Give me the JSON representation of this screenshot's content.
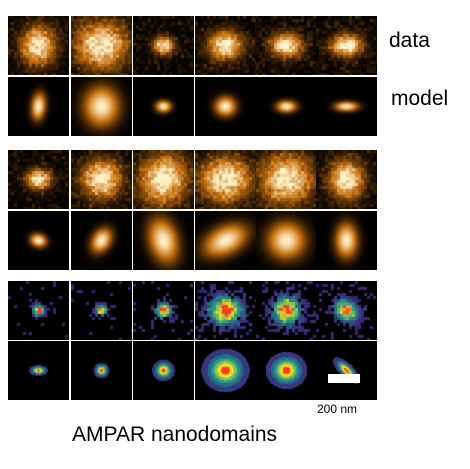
{
  "labels": {
    "data": "data",
    "model": "model",
    "scale": "200 nm",
    "title": "AMPAR nanodomains"
  },
  "panels": {
    "top_group": {
      "data_row": [
        {
          "sx": 0.3,
          "sy": 0.35,
          "rot": 0,
          "noise": 0.55
        },
        {
          "sx": 0.45,
          "sy": 0.42,
          "rot": 0,
          "noise": 0.7
        },
        {
          "sx": 0.18,
          "sy": 0.16,
          "rot": 0,
          "noise": 0.55
        },
        {
          "sx": 0.3,
          "sy": 0.26,
          "rot": 0,
          "noise": 0.6
        },
        {
          "sx": 0.28,
          "sy": 0.22,
          "rot": 0,
          "noise": 0.6
        },
        {
          "sx": 0.28,
          "sy": 0.2,
          "rot": 0,
          "noise": 0.6
        }
      ],
      "model_row": [
        {
          "sx": 0.13,
          "sy": 0.25,
          "rot": 0.1
        },
        {
          "sx": 0.32,
          "sy": 0.37,
          "rot": 0
        },
        {
          "sx": 0.14,
          "sy": 0.11,
          "rot": 0
        },
        {
          "sx": 0.19,
          "sy": 0.18,
          "rot": 0
        },
        {
          "sx": 0.18,
          "sy": 0.11,
          "rot": 0
        },
        {
          "sx": 0.21,
          "sy": 0.09,
          "rot": 0
        }
      ]
    },
    "middle_group": {
      "data_row": [
        {
          "sx": 0.22,
          "sy": 0.18,
          "rot": 0,
          "noise": 0.55
        },
        {
          "sx": 0.35,
          "sy": 0.35,
          "rot": 0,
          "noise": 0.65
        },
        {
          "sx": 0.4,
          "sy": 0.45,
          "rot": 0.3,
          "noise": 0.7
        },
        {
          "sx": 0.45,
          "sy": 0.4,
          "rot": 0,
          "noise": 0.7
        },
        {
          "sx": 0.45,
          "sy": 0.45,
          "rot": 0,
          "noise": 0.7
        },
        {
          "sx": 0.3,
          "sy": 0.35,
          "rot": 0,
          "noise": 0.65
        }
      ],
      "model_row": [
        {
          "sx": 0.15,
          "sy": 0.12,
          "rot": 0.3
        },
        {
          "sx": 0.17,
          "sy": 0.24,
          "rot": 0.5
        },
        {
          "sx": 0.26,
          "sy": 0.42,
          "rot": -0.25
        },
        {
          "sx": 0.42,
          "sy": 0.26,
          "rot": -0.5
        },
        {
          "sx": 0.34,
          "sy": 0.34,
          "rot": 0
        },
        {
          "sx": 0.2,
          "sy": 0.32,
          "rot": 0
        }
      ]
    },
    "bottom_group": {
      "data_row": [
        {
          "sx": 0.1,
          "sy": 0.1,
          "rot": 0,
          "noise": 0.35
        },
        {
          "sx": 0.1,
          "sy": 0.1,
          "rot": 0,
          "noise": 0.35
        },
        {
          "sx": 0.14,
          "sy": 0.14,
          "rot": 0,
          "noise": 0.4
        },
        {
          "sx": 0.28,
          "sy": 0.26,
          "rot": 0,
          "noise": 0.55
        },
        {
          "sx": 0.24,
          "sy": 0.26,
          "rot": 0,
          "noise": 0.5
        },
        {
          "sx": 0.22,
          "sy": 0.18,
          "rot": 0.7,
          "noise": 0.45
        }
      ],
      "model_row": [
        {
          "sx": 0.12,
          "sy": 0.07,
          "rot": 0
        },
        {
          "sx": 0.1,
          "sy": 0.1,
          "rot": 0
        },
        {
          "sx": 0.14,
          "sy": 0.14,
          "rot": 0
        },
        {
          "sx": 0.3,
          "sy": 0.28,
          "rot": 0
        },
        {
          "sx": 0.26,
          "sy": 0.24,
          "rot": 0
        },
        {
          "sx": 0.22,
          "sy": 0.09,
          "rot": 0.8
        }
      ]
    }
  },
  "colors": {
    "background": "#ffffff",
    "tile_background": "#000000",
    "heat_low": "#3a1400",
    "heat_mid": "#c8700f",
    "heat_high": "#fff1c8",
    "viridis_low": "#3b1f7a",
    "viridis_mid": "#1f9a8a",
    "viridis_high": "#f5e020",
    "peak": "#ff3b1f"
  }
}
